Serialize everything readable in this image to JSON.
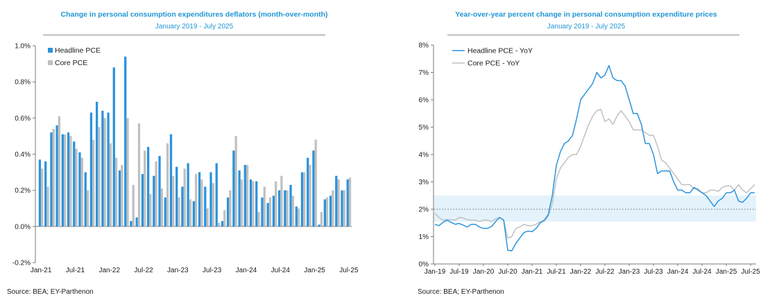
{
  "charts": [
    {
      "title": "Change in personal consumption expenditures deflators (month-over-month)",
      "subtitle": "January 2019 - July 2025",
      "source": "Source: BEA; EY-Parthenon"
    },
    {
      "title": "Year-over-year percent change in personal consumption expenditure prices",
      "subtitle": "January 2019 - July 2025",
      "source": "Source: BEA; EY-Parthenon"
    }
  ],
  "colors": {
    "headline": "#2b93dd",
    "core": "#c0c0c0",
    "band": "#e4f2fb",
    "title": "#2196d4"
  },
  "chart_data": [
    {
      "type": "bar",
      "title": "Change in personal consumption expenditures deflators (month-over-month)",
      "subtitle": "January 2019 - July 2025",
      "x_start": "Jan-21",
      "ylim": [
        -0.2,
        1.0
      ],
      "yticks": [
        "-0.2%",
        "0.0%",
        "0.2%",
        "0.4%",
        "0.6%",
        "0.8%",
        "1.0%"
      ],
      "ytick_values": [
        -0.2,
        0.0,
        0.2,
        0.4,
        0.6,
        0.8,
        1.0
      ],
      "xticks": [
        "Jan-21",
        "Jul-21",
        "Jan-22",
        "Jul-22",
        "Jan-23",
        "Jul-23",
        "Jan-24",
        "Jul-24",
        "Jan-25",
        "Jul-25"
      ],
      "xtick_index": [
        0,
        6,
        12,
        18,
        24,
        30,
        36,
        42,
        48,
        54
      ],
      "legend": [
        "Headline PCE",
        "Core PCE"
      ],
      "series": [
        {
          "name": "Headline PCE",
          "values": [
            0.37,
            0.36,
            0.52,
            0.56,
            0.51,
            0.52,
            0.47,
            0.41,
            0.3,
            0.63,
            0.69,
            0.64,
            0.63,
            0.88,
            0.31,
            0.94,
            0.03,
            0.05,
            0.29,
            0.44,
            0.28,
            0.39,
            0.16,
            0.51,
            0.33,
            0.22,
            0.35,
            0.14,
            0.3,
            0.22,
            0.3,
            0.35,
            0.03,
            0.16,
            0.42,
            0.31,
            0.34,
            0.26,
            0.25,
            0.16,
            0.13,
            0.17,
            0.2,
            0.2,
            0.23,
            0.11,
            0.3,
            0.38,
            0.42,
            0.01,
            0.15,
            0.17,
            0.28,
            0.2,
            0.26
          ]
        },
        {
          "name": "Core PCE",
          "values": [
            0.32,
            0.22,
            0.54,
            0.61,
            0.51,
            0.5,
            0.43,
            0.38,
            0.2,
            0.48,
            0.55,
            0.6,
            0.46,
            0.38,
            0.34,
            0.6,
            0.23,
            0.57,
            0.42,
            0.18,
            0.36,
            0.21,
            0.46,
            0.28,
            0.16,
            0.32,
            0.15,
            0.29,
            0.26,
            0.1,
            0.24,
            0.02,
            0.09,
            0.2,
            0.5,
            0.26,
            0.34,
            0.25,
            0.08,
            0.22,
            0.16,
            0.25,
            0.28,
            0.2,
            0.17,
            0.1,
            0.3,
            0.34,
            0.48,
            0.08,
            0.16,
            0.2,
            0.26,
            0.2,
            0.27
          ]
        }
      ]
    },
    {
      "type": "line",
      "title": "Year-over-year percent change in personal consumption expenditure prices",
      "subtitle": "January 2019 - July 2025",
      "x_start": "Jan-19",
      "ylim": [
        0,
        8
      ],
      "yticks": [
        "0%",
        "1%",
        "2%",
        "3%",
        "4%",
        "5%",
        "6%",
        "7%",
        "8%"
      ],
      "ytick_values": [
        0,
        1,
        2,
        3,
        4,
        5,
        6,
        7,
        8
      ],
      "xticks": [
        "Jan-19",
        "Jul-19",
        "Jan-20",
        "Jul-20",
        "Jan-21",
        "Jul-21",
        "Jan-22",
        "Jul-22",
        "Jan-23",
        "Jul-23",
        "Jan-24",
        "Jul-24",
        "Jan-25",
        "Jul-25"
      ],
      "xtick_index": [
        0,
        6,
        12,
        18,
        24,
        30,
        36,
        42,
        48,
        54,
        60,
        66,
        72,
        78
      ],
      "reference_line": 2.0,
      "band": [
        1.55,
        2.5
      ],
      "legend": [
        "Headline PCE - YoY",
        "Core PCE - YoY"
      ],
      "series": [
        {
          "name": "Headline PCE - YoY",
          "values": [
            1.45,
            1.4,
            1.52,
            1.6,
            1.52,
            1.45,
            1.48,
            1.42,
            1.35,
            1.45,
            1.45,
            1.35,
            1.3,
            1.3,
            1.37,
            1.55,
            1.7,
            1.6,
            0.5,
            0.48,
            0.75,
            0.95,
            1.15,
            1.2,
            1.18,
            1.3,
            1.5,
            1.6,
            1.8,
            2.5,
            3.6,
            4.1,
            4.4,
            4.5,
            4.7,
            5.3,
            6.0,
            6.2,
            6.4,
            6.6,
            7.0,
            6.8,
            6.9,
            7.25,
            6.8,
            6.7,
            6.7,
            6.5,
            6.0,
            5.5,
            5.5,
            5.1,
            4.4,
            4.4,
            4.0,
            3.3,
            3.4,
            3.4,
            3.4,
            3.0,
            2.7,
            2.7,
            2.6,
            2.6,
            2.8,
            2.7,
            2.6,
            2.5,
            2.3,
            2.1,
            2.3,
            2.4,
            2.6,
            2.6,
            2.7,
            2.3,
            2.25,
            2.4,
            2.6,
            2.6
          ]
        },
        {
          "name": "Core PCE - YoY",
          "values": [
            1.85,
            1.7,
            1.6,
            1.62,
            1.62,
            1.6,
            1.7,
            1.68,
            1.62,
            1.6,
            1.6,
            1.55,
            1.6,
            1.6,
            1.55,
            1.65,
            1.7,
            1.6,
            0.95,
            1.0,
            1.3,
            1.35,
            1.45,
            1.4,
            1.4,
            1.45,
            1.55,
            1.55,
            1.75,
            2.2,
            3.1,
            3.5,
            3.7,
            3.9,
            4.0,
            4.0,
            4.3,
            4.7,
            5.1,
            5.4,
            5.6,
            5.65,
            5.2,
            5.3,
            5.1,
            5.4,
            5.6,
            5.4,
            5.2,
            4.9,
            4.9,
            4.9,
            4.8,
            4.7,
            4.7,
            4.3,
            3.8,
            3.7,
            3.5,
            3.3,
            3.1,
            2.9,
            2.9,
            2.9,
            2.75,
            2.75,
            2.6,
            2.6,
            2.7,
            2.7,
            2.65,
            2.8,
            2.85,
            2.85,
            2.7,
            2.9,
            2.7,
            2.6,
            2.75,
            2.9
          ]
        }
      ]
    }
  ]
}
